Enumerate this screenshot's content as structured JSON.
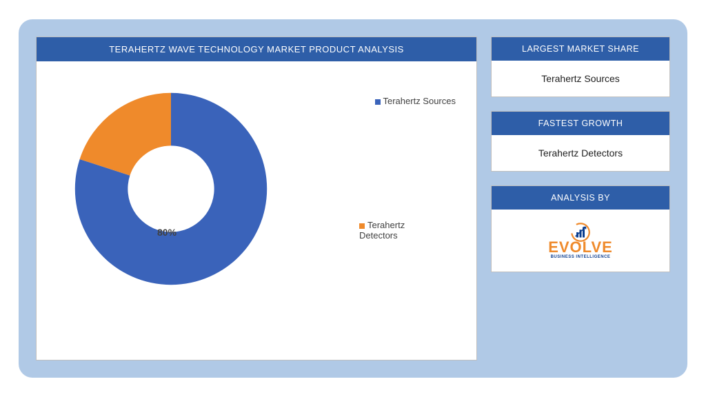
{
  "frame": {
    "background_color": "#b0c9e6",
    "border_radius": 20
  },
  "chart": {
    "type": "donut",
    "title": "TERAHERTZ WAVE TECHNOLOGY MARKET PRODUCT ANALYSIS",
    "header_bg": "#2e5ea8",
    "header_text_color": "#ffffff",
    "card_bg": "#ffffff",
    "card_border": "#bfbfbf",
    "slices": [
      {
        "label": "Terahertz Sources",
        "value": 80,
        "color": "#3a63ba"
      },
      {
        "label": "Terahertz Detectors",
        "value": 20,
        "color": "#ef8a2b"
      }
    ],
    "inner_radius_ratio": 0.45,
    "value_label": "80%",
    "value_label_color": "#404040",
    "legend_text_color": "#404040",
    "legend_fontsize": 13,
    "title_fontsize": 13,
    "start_angle_deg": -90
  },
  "side_cards": {
    "largest": {
      "header": "LARGEST MARKET SHARE",
      "value": "Terahertz Sources",
      "header_bg": "#2e5ea8",
      "header_text_color": "#ffffff"
    },
    "fastest": {
      "header": "FASTEST GROWTH",
      "value": "Terahertz Detectors",
      "header_bg": "#2e5ea8",
      "header_text_color": "#ffffff"
    },
    "analysis_by": {
      "header": "ANALYSIS BY",
      "header_bg": "#2e5ea8",
      "header_text_color": "#ffffff",
      "logo_word": "EVOLVE",
      "logo_sub": "BUSINESS INTELLIGENCE",
      "logo_color_primary": "#ef8a2b",
      "logo_color_secondary": "#0a3d8f"
    }
  }
}
